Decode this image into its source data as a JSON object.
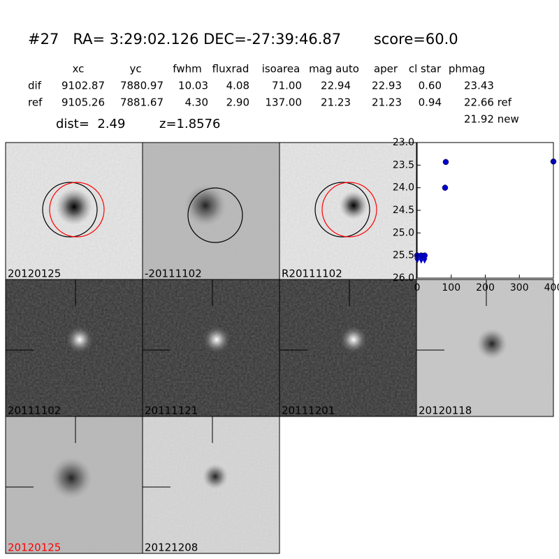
{
  "header": {
    "title": "#27   RA= 3:29:02.126 DEC=-27:39:46.87       score=60.0",
    "new_mag": "21.92 new",
    "dist": "dist=  2.49",
    "z": "z=1.8576"
  },
  "table": {
    "columns": [
      "xc",
      "yc",
      "fwhm",
      "fluxrad",
      "isoarea",
      "mag auto",
      "aper",
      "cl star",
      "phmag"
    ],
    "rows": [
      [
        "dif",
        "9102.87",
        "7880.97",
        "10.03",
        "4.08",
        "71.00",
        "22.94",
        "22.93",
        "0.60",
        "23.43"
      ],
      [
        "ref",
        "9105.26",
        "7881.67",
        "4.30",
        "2.90",
        "137.00",
        "21.23",
        "21.23",
        "0.94",
        "22.66 ref"
      ]
    ]
  },
  "panels": [
    "20120125",
    "-20111102",
    "R20111102",
    "20111102",
    "20111121",
    "20111201",
    "20120118",
    "20120125",
    "20121208"
  ],
  "chart_data": {
    "type": "scatter",
    "xlim": [
      0,
      400
    ],
    "ylim": [
      26.0,
      23.0
    ],
    "xticks": [
      0,
      100,
      200,
      300,
      400
    ],
    "yticks": [
      {
        "value": 23.0,
        "label": "23.0"
      },
      23.5,
      {
        "value": 24.0,
        "label": "24.0"
      },
      24.5,
      {
        "value": 25.0,
        "label": "25.0"
      },
      25.5,
      {
        "value": 26.0,
        "label": "26.0"
      }
    ],
    "series": [
      {
        "name": "detections",
        "color": "#0000cc",
        "marker": "circle",
        "x": [
          0,
          12,
          22,
          82,
          84,
          400
        ],
        "values": [
          25.5,
          25.5,
          25.5,
          24.0,
          23.43,
          23.42
        ],
        "errors": [
          0.02,
          0.02,
          0.02,
          0.07,
          0.04,
          0.04
        ]
      },
      {
        "name": "upper limits",
        "color": "#0000cc",
        "marker": "triangle-down",
        "x": [
          0,
          12,
          22
        ],
        "values": [
          25.62,
          25.62,
          25.62
        ]
      }
    ]
  }
}
